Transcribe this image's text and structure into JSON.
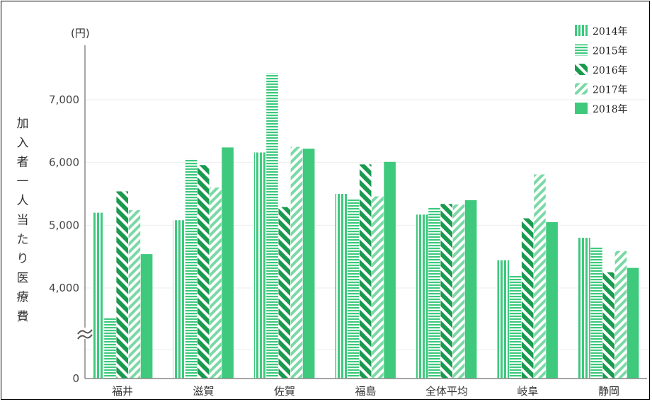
{
  "chart_data": {
    "type": "bar",
    "unit_label": "(円)",
    "ylabel": "加入者一人当たり医療費",
    "categories": [
      "福井",
      "滋賀",
      "佐賀",
      "福島",
      "全体平均",
      "岐阜",
      "静岡"
    ],
    "series": [
      {
        "name": "2014年",
        "pattern": "vertical",
        "values": [
          5200,
          5080,
          6160,
          5500,
          5170,
          4440,
          4800
        ]
      },
      {
        "name": "2015年",
        "pattern": "horizontal",
        "values": [
          3520,
          6060,
          7420,
          5410,
          5290,
          4200,
          4660
        ]
      },
      {
        "name": "2016年",
        "pattern": "diagonal-thick",
        "values": [
          5540,
          5960,
          5290,
          5970,
          5340,
          5110,
          4250
        ]
      },
      {
        "name": "2017年",
        "pattern": "diagonal-thin",
        "values": [
          5240,
          5600,
          6250,
          5460,
          5330,
          5810,
          4590
        ]
      },
      {
        "name": "2018年",
        "pattern": "solid",
        "values": [
          4540,
          6240,
          6220,
          6010,
          5400,
          5050,
          4320
        ]
      }
    ],
    "y_ticks": [
      "0",
      "4,000",
      "5,000",
      "6,000",
      "7,000"
    ],
    "axis_break": true,
    "grid": true,
    "legend_position": "top-right",
    "colors": {
      "bar": "#3ec97d",
      "axis": "#888888",
      "grid": "#eeeeee",
      "break": "#555555"
    }
  }
}
